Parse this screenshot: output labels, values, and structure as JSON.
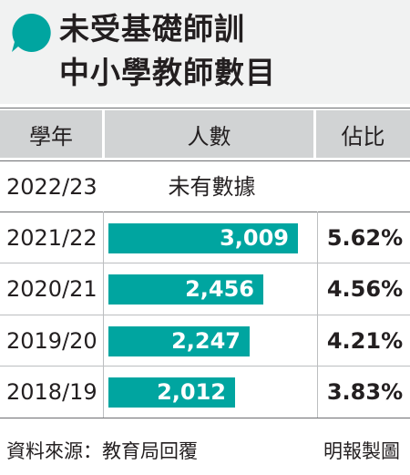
{
  "title": {
    "line1": "未受基礎師訓",
    "line2": "中小學教師數目"
  },
  "columns": {
    "year": "學年",
    "count": "人數",
    "share": "佔比"
  },
  "na_row": {
    "year": "2022/23",
    "text": "未有數據"
  },
  "footer": {
    "source": "資料來源：教育局回覆",
    "credit": "明報製圖"
  },
  "colors": {
    "bar": "#00a5a0",
    "header_bg": "#f1f2f2",
    "column_header_bg": "#d1d3d4"
  },
  "icons": {
    "title_marker": "speech-bubble-icon"
  },
  "chart_data": {
    "type": "bar",
    "orientation": "horizontal",
    "title": "未受基礎師訓 中小學教師數目",
    "categories": [
      "2021/22",
      "2020/21",
      "2019/20",
      "2018/19"
    ],
    "series": [
      {
        "name": "人數",
        "values": [
          3009,
          2456,
          2247,
          2012
        ],
        "labels": [
          "3,009",
          "2,456",
          "2,247",
          "2,012"
        ]
      },
      {
        "name": "佔比",
        "values": [
          5.62,
          4.56,
          4.21,
          3.83
        ],
        "labels": [
          "5.62%",
          "4.56%",
          "4.21%",
          "3.83%"
        ]
      }
    ]
  }
}
